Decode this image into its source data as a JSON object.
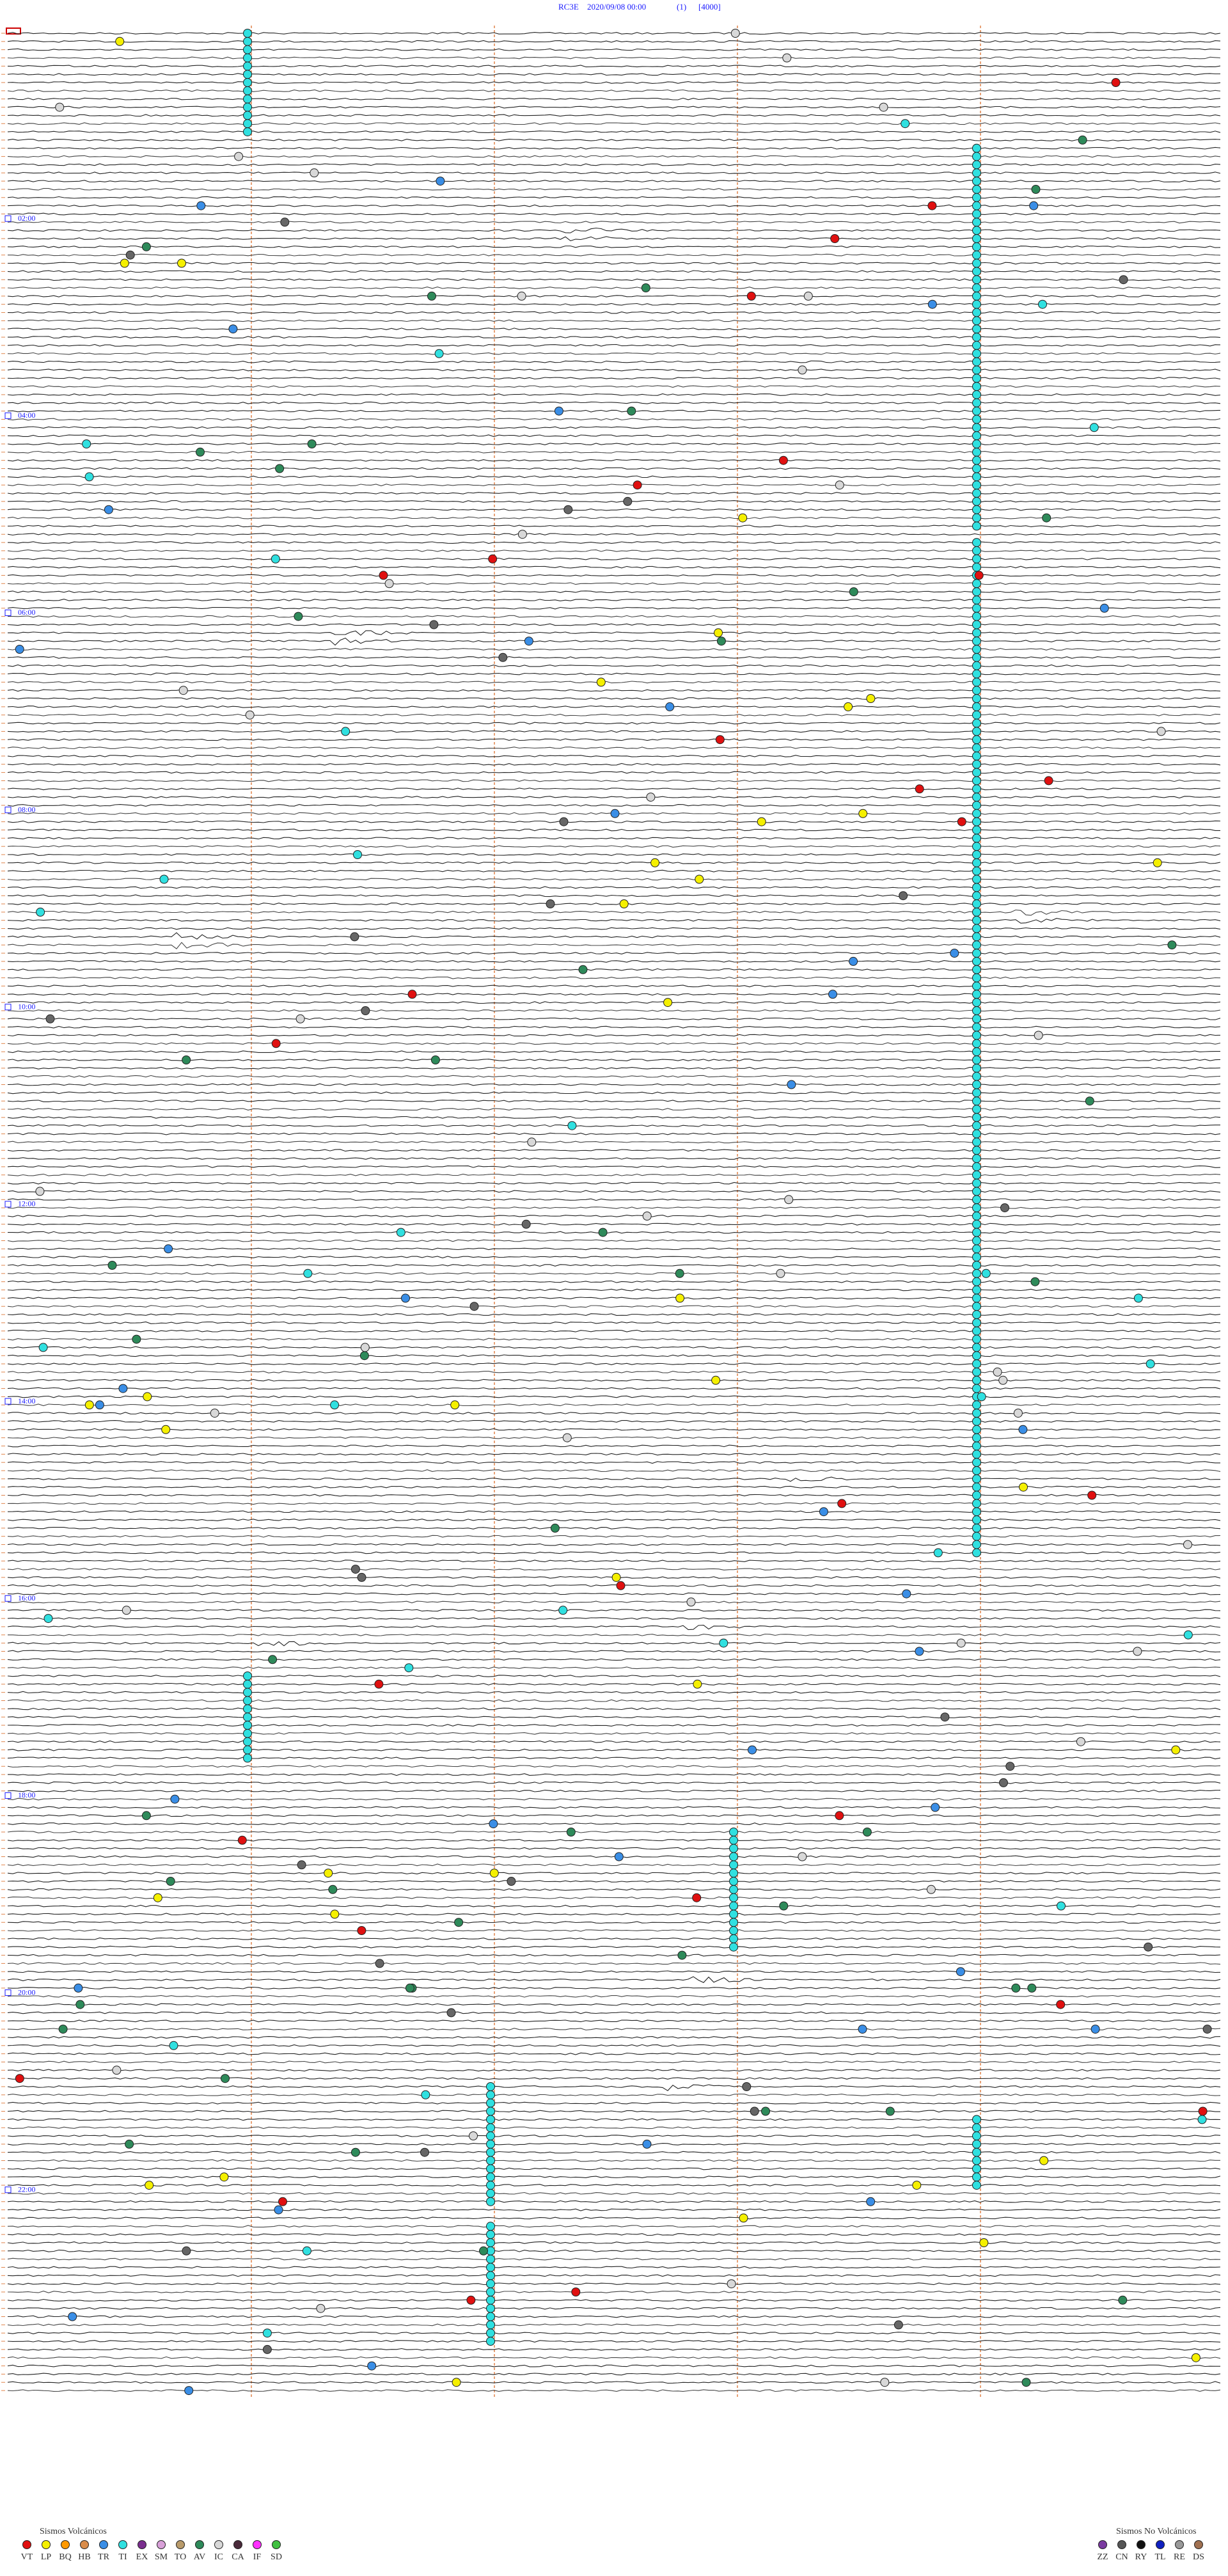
{
  "header": {
    "station": "RC3E",
    "datetime": "2020/09/08 00:00",
    "channel": "(1)",
    "scale": "[4000]"
  },
  "hour_labels": [
    "02:00",
    "04:00",
    "06:00",
    "08:00",
    "10:00",
    "12:00",
    "14:00",
    "16:00",
    "18:00",
    "20:00",
    "22:00"
  ],
  "legend_volcanic": {
    "title": "Sismos Volcánicos",
    "items": [
      {
        "code": "VT",
        "color": "#e01010"
      },
      {
        "code": "LP",
        "color": "#f5f000"
      },
      {
        "code": "BQ",
        "color": "#ff9900"
      },
      {
        "code": "HB",
        "color": "#d98c4a"
      },
      {
        "code": "TR",
        "color": "#3a8ee6"
      },
      {
        "code": "TI",
        "color": "#30e0e0"
      },
      {
        "code": "EX",
        "color": "#7a2e8e"
      },
      {
        "code": "SM",
        "color": "#d8a0d8"
      },
      {
        "code": "TO",
        "color": "#b89a6a"
      },
      {
        "code": "AV",
        "color": "#2e8a5a"
      },
      {
        "code": "IC",
        "color": "#d8d8d8"
      },
      {
        "code": "CA",
        "color": "#4a2a3a"
      },
      {
        "code": "IF",
        "color": "#ff30ff"
      },
      {
        "code": "SD",
        "color": "#40c040"
      }
    ]
  },
  "legend_non_volcanic": {
    "title": "Sismos No Volcánicos",
    "items": [
      {
        "code": "ZZ",
        "color": "#7a3aa0"
      },
      {
        "code": "CN",
        "color": "#555555"
      },
      {
        "code": "RY",
        "color": "#111111"
      },
      {
        "code": "TL",
        "color": "#1020c0"
      },
      {
        "code": "RE",
        "color": "#999999"
      },
      {
        "code": "DS",
        "color": "#a07050"
      }
    ]
  }
}
